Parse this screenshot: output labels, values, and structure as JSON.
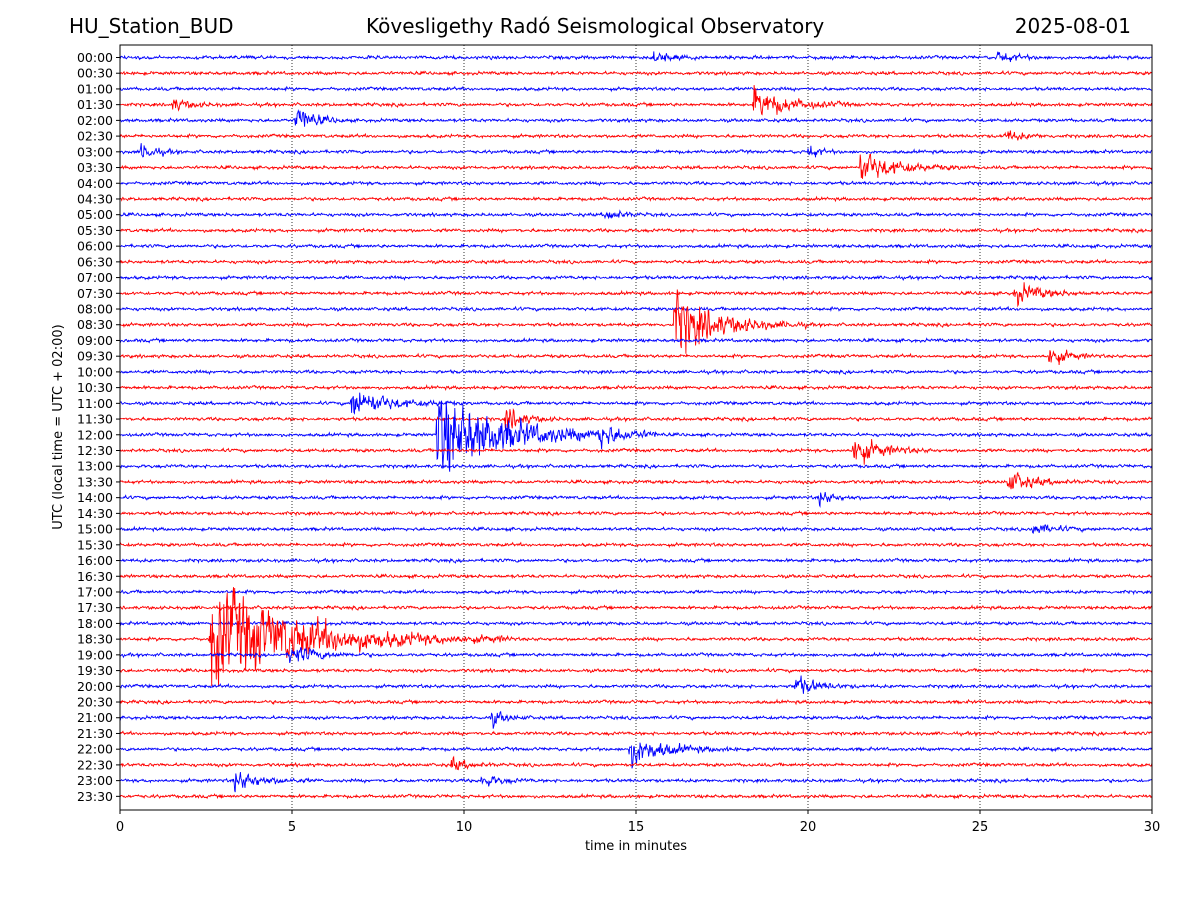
{
  "header": {
    "station": "HU_Station_BUD",
    "observatory": "Kövesligethy Radó Seismological Observatory",
    "date": "2025-08-01"
  },
  "chart_data": {
    "type": "line",
    "title": "Kövesligethy Radó Seismological Observatory",
    "xlabel": "time in minutes",
    "ylabel": "UTC (local time = UTC + 02:00)",
    "xlim": [
      0,
      30
    ],
    "xticks": [
      0,
      5,
      10,
      15,
      20,
      25,
      30
    ],
    "grid": "vertical dotted at 5, 10, 15, 20, 25",
    "row_labels": [
      "00:00",
      "00:30",
      "01:00",
      "01:30",
      "02:00",
      "02:30",
      "03:00",
      "03:30",
      "04:00",
      "04:30",
      "05:00",
      "05:30",
      "06:00",
      "06:30",
      "07:00",
      "07:30",
      "08:00",
      "08:30",
      "09:00",
      "09:30",
      "10:00",
      "10:30",
      "11:00",
      "11:30",
      "12:00",
      "12:30",
      "13:00",
      "13:30",
      "14:00",
      "14:30",
      "15:00",
      "15:30",
      "16:00",
      "16:30",
      "17:00",
      "17:30",
      "18:00",
      "18:30",
      "19:00",
      "19:30",
      "20:00",
      "20:30",
      "21:00",
      "21:30",
      "22:00",
      "22:30",
      "23:00",
      "23:30"
    ],
    "trace_colors": [
      "#0000ff",
      "#ff0000"
    ],
    "events": [
      {
        "row": "00:00",
        "minute": 15.5,
        "amplitude": 1.2,
        "duration": 1.0
      },
      {
        "row": "00:00",
        "minute": 25.5,
        "amplitude": 1.2,
        "duration": 1.0
      },
      {
        "row": "01:30",
        "minute": 1.5,
        "amplitude": 1.3,
        "duration": 1.0
      },
      {
        "row": "01:30",
        "minute": 18.4,
        "amplitude": 3.0,
        "duration": 2.0
      },
      {
        "row": "02:00",
        "minute": 5.1,
        "amplitude": 3.0,
        "duration": 1.0
      },
      {
        "row": "02:30",
        "minute": 25.7,
        "amplitude": 1.2,
        "duration": 1.0
      },
      {
        "row": "03:00",
        "minute": 0.6,
        "amplitude": 1.8,
        "duration": 0.8
      },
      {
        "row": "03:00",
        "minute": 20.0,
        "amplitude": 1.5,
        "duration": 0.6
      },
      {
        "row": "03:30",
        "minute": 21.5,
        "amplitude": 3.0,
        "duration": 2.0
      },
      {
        "row": "05:00",
        "minute": 14.1,
        "amplitude": 1.5,
        "duration": 0.8
      },
      {
        "row": "07:30",
        "minute": 26.0,
        "amplitude": 2.0,
        "duration": 1.5
      },
      {
        "row": "08:30",
        "minute": 16.1,
        "amplitude": 6.0,
        "duration": 2.5
      },
      {
        "row": "09:30",
        "minute": 27.0,
        "amplitude": 2.0,
        "duration": 1.0
      },
      {
        "row": "11:00",
        "minute": 6.7,
        "amplitude": 3.0,
        "duration": 2.0
      },
      {
        "row": "11:30",
        "minute": 11.2,
        "amplitude": 2.5,
        "duration": 1.0
      },
      {
        "row": "12:00",
        "minute": 9.2,
        "amplitude": 8.0,
        "duration": 4.0
      },
      {
        "row": "12:00",
        "minute": 13.9,
        "amplitude": 2.0,
        "duration": 1.2
      },
      {
        "row": "12:30",
        "minute": 21.3,
        "amplitude": 3.0,
        "duration": 1.5
      },
      {
        "row": "13:30",
        "minute": 25.8,
        "amplitude": 2.0,
        "duration": 1.5
      },
      {
        "row": "14:00",
        "minute": 20.3,
        "amplitude": 1.5,
        "duration": 0.8
      },
      {
        "row": "15:00",
        "minute": 26.5,
        "amplitude": 1.2,
        "duration": 1.2
      },
      {
        "row": "18:30",
        "minute": 2.6,
        "amplitude": 10.0,
        "duration": 5.5
      },
      {
        "row": "19:00",
        "minute": 4.9,
        "amplitude": 2.0,
        "duration": 1.5
      },
      {
        "row": "20:00",
        "minute": 19.6,
        "amplitude": 2.0,
        "duration": 1.2
      },
      {
        "row": "21:00",
        "minute": 10.8,
        "amplitude": 1.5,
        "duration": 0.8
      },
      {
        "row": "22:00",
        "minute": 14.8,
        "amplitude": 3.0,
        "duration": 2.0
      },
      {
        "row": "22:30",
        "minute": 9.6,
        "amplitude": 1.3,
        "duration": 1.0
      },
      {
        "row": "23:00",
        "minute": 3.3,
        "amplitude": 2.0,
        "duration": 1.5
      },
      {
        "row": "23:00",
        "minute": 10.5,
        "amplitude": 1.2,
        "duration": 1.0
      }
    ]
  }
}
